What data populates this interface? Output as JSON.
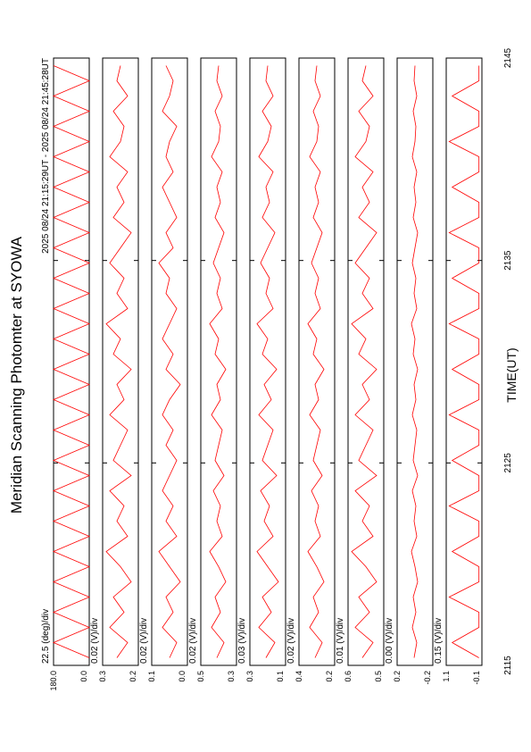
{
  "chart_data": {
    "type": "line",
    "title": "Meridian Scanning Photomter at SYOWA",
    "subtitle": "2025 08/24 21:15:29UT - 2025 08/24 21:45:28UT",
    "xlabel": "TIME(UT)",
    "xlim": [
      2115,
      2145
    ],
    "xticks": [
      2115,
      2125,
      2135,
      2145
    ],
    "color": "#ff0000",
    "panels": [
      {
        "scale": "22.5 (deg)/div",
        "ylim": [
          0.0,
          180.0
        ],
        "yticks": [
          {
            "value": 180,
            "label": "180.0"
          },
          {
            "value": 0,
            "label": "0.0"
          }
        ],
        "values": [
          0,
          180,
          0,
          180,
          0,
          180,
          0,
          180,
          0,
          180,
          0,
          180,
          0,
          180,
          0,
          180,
          0,
          180,
          0,
          180,
          0,
          180,
          0,
          180,
          0,
          180,
          0,
          180,
          0,
          180,
          0,
          180,
          0,
          180,
          0,
          180,
          0,
          180,
          0,
          180
        ]
      },
      {
        "scale": "0.02 (V)/div",
        "ylim": [
          0.2,
          0.3
        ],
        "yticks": [
          {
            "value": 0.3,
            "label": "0.3"
          },
          {
            "value": 0.2,
            "label": "0.2"
          }
        ],
        "values": [
          0.26,
          0.23,
          0.28,
          0.24,
          0.27,
          0.22,
          0.25,
          0.29,
          0.23,
          0.26,
          0.24,
          0.28,
          0.22,
          0.27,
          0.25,
          0.23,
          0.28,
          0.24,
          0.26,
          0.22,
          0.27,
          0.25,
          0.29,
          0.23,
          0.26,
          0.24,
          0.28,
          0.25,
          0.22,
          0.27,
          0.24,
          0.26,
          0.23,
          0.28,
          0.25,
          0.24,
          0.27,
          0.23,
          0.26,
          0.25
        ]
      },
      {
        "scale": "0.02 (V)/div",
        "ylim": [
          0.0,
          0.1
        ],
        "yticks": [
          {
            "value": 0.1,
            "label": "0.1"
          },
          {
            "value": 0.0,
            "label": "0.0"
          }
        ],
        "values": [
          0.05,
          0.03,
          0.07,
          0.04,
          0.06,
          0.02,
          0.05,
          0.08,
          0.03,
          0.06,
          0.04,
          0.07,
          0.05,
          0.03,
          0.06,
          0.04,
          0.07,
          0.05,
          0.02,
          0.06,
          0.04,
          0.07,
          0.05,
          0.03,
          0.06,
          0.05,
          0.08,
          0.04,
          0.06,
          0.03,
          0.05,
          0.07,
          0.04,
          0.06,
          0.05,
          0.03,
          0.07,
          0.05,
          0.04,
          0.06
        ]
      },
      {
        "scale": "0.02 (V)/div",
        "ylim": [
          0.3,
          0.5
        ],
        "yticks": [
          {
            "value": 0.5,
            "label": "0.5"
          },
          {
            "value": 0.3,
            "label": "0.3"
          }
        ],
        "values": [
          0.41,
          0.37,
          0.44,
          0.39,
          0.42,
          0.36,
          0.4,
          0.45,
          0.38,
          0.41,
          0.39,
          0.43,
          0.37,
          0.42,
          0.4,
          0.38,
          0.44,
          0.39,
          0.41,
          0.36,
          0.42,
          0.4,
          0.45,
          0.38,
          0.41,
          0.39,
          0.43,
          0.4,
          0.37,
          0.42,
          0.39,
          0.41,
          0.38,
          0.44,
          0.4,
          0.39,
          0.42,
          0.38,
          0.41,
          0.4
        ]
      },
      {
        "scale": "0.03 (V)/div",
        "ylim": [
          0.1,
          0.3
        ],
        "yticks": [
          {
            "value": 0.3,
            "label": "0.3"
          },
          {
            "value": 0.1,
            "label": "0.1"
          }
        ],
        "values": [
          0.21,
          0.16,
          0.25,
          0.18,
          0.23,
          0.14,
          0.2,
          0.26,
          0.17,
          0.22,
          0.19,
          0.24,
          0.15,
          0.23,
          0.2,
          0.17,
          0.25,
          0.18,
          0.22,
          0.15,
          0.23,
          0.2,
          0.26,
          0.17,
          0.21,
          0.19,
          0.24,
          0.2,
          0.16,
          0.23,
          0.19,
          0.21,
          0.17,
          0.25,
          0.2,
          0.18,
          0.23,
          0.17,
          0.21,
          0.2
        ]
      },
      {
        "scale": "0.02 (V)/div",
        "ylim": [
          0.2,
          0.4
        ],
        "yticks": [
          {
            "value": 0.4,
            "label": "0.4"
          },
          {
            "value": 0.2,
            "label": "0.2"
          }
        ],
        "values": [
          0.31,
          0.27,
          0.34,
          0.29,
          0.32,
          0.26,
          0.3,
          0.35,
          0.28,
          0.31,
          0.29,
          0.33,
          0.27,
          0.32,
          0.3,
          0.28,
          0.34,
          0.29,
          0.31,
          0.26,
          0.32,
          0.3,
          0.35,
          0.28,
          0.31,
          0.29,
          0.33,
          0.3,
          0.27,
          0.32,
          0.29,
          0.31,
          0.28,
          0.34,
          0.3,
          0.29,
          0.32,
          0.28,
          0.31,
          0.3
        ]
      },
      {
        "scale": "0.01 (V)/div",
        "ylim": [
          0.5,
          0.6
        ],
        "yticks": [
          {
            "value": 0.6,
            "label": "0.6"
          },
          {
            "value": 0.5,
            "label": "0.5"
          }
        ],
        "values": [
          0.56,
          0.53,
          0.58,
          0.54,
          0.57,
          0.52,
          0.55,
          0.59,
          0.53,
          0.56,
          0.54,
          0.58,
          0.52,
          0.57,
          0.55,
          0.53,
          0.58,
          0.54,
          0.56,
          0.52,
          0.57,
          0.55,
          0.59,
          0.53,
          0.56,
          0.54,
          0.58,
          0.55,
          0.52,
          0.57,
          0.54,
          0.56,
          0.53,
          0.58,
          0.55,
          0.54,
          0.57,
          0.53,
          0.56,
          0.55
        ]
      },
      {
        "scale": "0.00 (V)/div",
        "ylim": [
          -0.2,
          0.2
        ],
        "yticks": [
          {
            "value": 0.2,
            "label": "0.2"
          },
          {
            "value": -0.2,
            "label": "-0.2"
          }
        ],
        "values": [
          0.01,
          -0.02,
          0.03,
          -0.01,
          0.02,
          -0.03,
          0.0,
          0.04,
          -0.02,
          0.01,
          -0.01,
          0.03,
          -0.03,
          0.02,
          0.0,
          -0.02,
          0.03,
          -0.01,
          0.01,
          -0.03,
          0.02,
          0.0,
          0.04,
          -0.02,
          0.01,
          -0.01,
          0.03,
          0.0,
          -0.03,
          0.02,
          -0.01,
          0.01,
          -0.02,
          0.03,
          0.0,
          -0.01,
          0.02,
          -0.02,
          0.01,
          0.0
        ]
      },
      {
        "scale": "0.15 (V)/div",
        "ylim": [
          -0.1,
          1.1
        ],
        "yticks": [
          {
            "value": 1.1,
            "label": "1.1"
          },
          {
            "value": -0.1,
            "label": "-0.1"
          }
        ],
        "values": [
          0.0,
          0.9,
          0.0,
          0.0,
          1.0,
          0.0,
          0.0,
          0.9,
          0.0,
          0.0,
          1.0,
          0.0,
          0.0,
          0.9,
          0.0,
          0.0,
          1.0,
          0.0,
          0.0,
          0.9,
          0.0,
          0.0,
          1.0,
          0.0,
          0.0,
          0.9,
          0.0,
          0.0,
          1.0,
          0.0,
          0.0,
          0.9,
          0.0,
          0.0,
          1.0,
          0.0,
          0.0,
          0.9,
          0.0,
          0.0
        ]
      }
    ]
  }
}
